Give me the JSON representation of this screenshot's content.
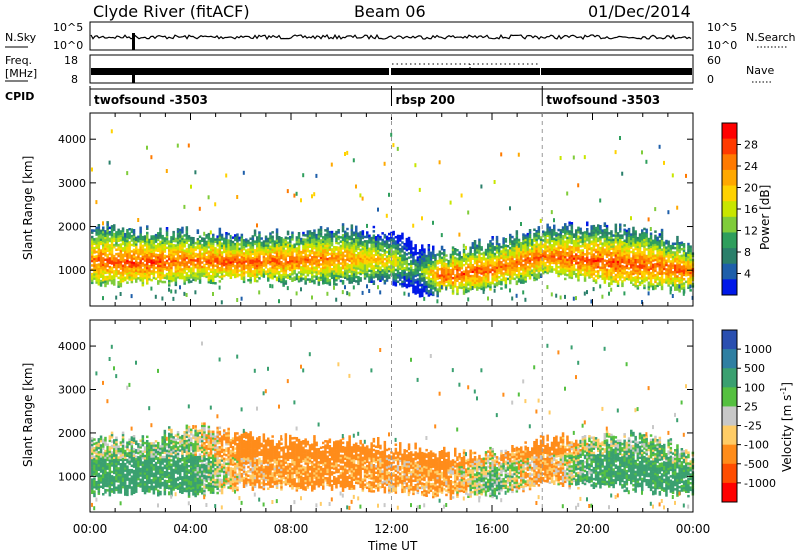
{
  "header": {
    "station": "Clyde River (fitACF)",
    "beam": "Beam 06",
    "date": "01/Dec/2014"
  },
  "noise_panel": {
    "left_label": "N.Sky",
    "right_label": "N.Search",
    "left_ticks": [
      "10^5",
      "10^0"
    ],
    "right_ticks": [
      "10^5",
      "10^0"
    ]
  },
  "freq_panel": {
    "left_label_line1": "Freq.",
    "left_label_line2": "[MHz]",
    "left_ticks": [
      "18",
      "8"
    ],
    "right_label": "Nave",
    "right_ticks": [
      "60",
      "0"
    ]
  },
  "cpid": {
    "label": "CPID",
    "segments": [
      {
        "name": "twofsound -3503",
        "start_hr": 0,
        "end_hr": 12
      },
      {
        "name": "rbsp 200",
        "start_hr": 12,
        "end_hr": 18
      },
      {
        "name": "twofsound -3503",
        "start_hr": 18,
        "end_hr": 24
      }
    ]
  },
  "power_colorbar": {
    "label": "Power [dB]",
    "ticks": [
      "28",
      "24",
      "20",
      "16",
      "12",
      "8",
      "4"
    ],
    "colors": [
      "#ff0000",
      "#ff3a00",
      "#ff7a00",
      "#ffa800",
      "#ffd200",
      "#c8e600",
      "#7fcc3a",
      "#2e9e5c",
      "#2a7f6a",
      "#1e5faa",
      "#0018e8"
    ]
  },
  "velocity_colorbar": {
    "label": "Velocity [m s",
    "label_sup": "-1",
    "label_close": "]",
    "ticks": [
      "1000",
      "500",
      "100",
      "25",
      "-25",
      "-100",
      "-500",
      "-1000"
    ],
    "colors": [
      "#2a4fb0",
      "#2f7fa2",
      "#3aa070",
      "#55c040",
      "#c8c8c8",
      "#ffcc66",
      "#ff8c1a",
      "#ff4d00",
      "#ff0000"
    ]
  },
  "axes": {
    "ylabel": "Slant Range [km]",
    "yticks": [
      "4000",
      "3000",
      "2000",
      "1000"
    ],
    "xlabel": "Time UT",
    "xticks": [
      "00:00",
      "04:00",
      "08:00",
      "12:00",
      "16:00",
      "20:00",
      "00:00"
    ]
  },
  "chart_data": [
    {
      "type": "heatmap",
      "title": "",
      "quantity": "Power",
      "xlabel": "Time UT",
      "ylabel": "Slant Range [km]",
      "xlim_hours": [
        0,
        24
      ],
      "ylim_km": [
        180,
        4600
      ],
      "colorbar_unit": "dB",
      "colorbar_range": [
        0,
        30
      ],
      "profile": [
        {
          "hour": 0,
          "center_km": 1200,
          "top_km": 2000,
          "bottom_km": 650,
          "power_db": 24
        },
        {
          "hour": 2,
          "center_km": 1150,
          "top_km": 1850,
          "bottom_km": 700,
          "power_db": 26
        },
        {
          "hour": 4,
          "center_km": 1200,
          "top_km": 1850,
          "bottom_km": 750,
          "power_db": 24
        },
        {
          "hour": 6,
          "center_km": 1150,
          "top_km": 1800,
          "bottom_km": 800,
          "power_db": 25
        },
        {
          "hour": 8,
          "center_km": 1200,
          "top_km": 1800,
          "bottom_km": 700,
          "power_db": 24
        },
        {
          "hour": 10,
          "center_km": 1250,
          "top_km": 1900,
          "bottom_km": 750,
          "power_db": 22
        },
        {
          "hour": 12,
          "center_km": 1200,
          "top_km": 1900,
          "bottom_km": 750,
          "power_db": 18
        },
        {
          "hour": 13,
          "center_km": 1000,
          "top_km": 1500,
          "bottom_km": 400,
          "power_db": 10
        },
        {
          "hour": 14,
          "center_km": 850,
          "top_km": 1400,
          "bottom_km": 500,
          "power_db": 26
        },
        {
          "hour": 16,
          "center_km": 1000,
          "top_km": 1600,
          "bottom_km": 600,
          "power_db": 24
        },
        {
          "hour": 18,
          "center_km": 1300,
          "top_km": 1900,
          "bottom_km": 900,
          "power_db": 24
        },
        {
          "hour": 20,
          "center_km": 1200,
          "top_km": 2000,
          "bottom_km": 750,
          "power_db": 26
        },
        {
          "hour": 22,
          "center_km": 1100,
          "top_km": 1900,
          "bottom_km": 650,
          "power_db": 25
        },
        {
          "hour": 24,
          "center_km": 950,
          "top_km": 1500,
          "bottom_km": 550,
          "power_db": 24
        }
      ]
    },
    {
      "type": "heatmap",
      "title": "",
      "quantity": "Velocity",
      "xlabel": "Time UT",
      "ylabel": "Slant Range [km]",
      "xlim_hours": [
        0,
        24
      ],
      "ylim_km": [
        180,
        4600
      ],
      "colorbar_unit": "m s-1",
      "colorbar_levels": [
        1000,
        500,
        100,
        25,
        -25,
        -100,
        -500,
        -1000
      ],
      "profile": [
        {
          "hour": 0,
          "center_km": 1200,
          "top_km": 1900,
          "bottom_km": 600,
          "velocity_ms": 150
        },
        {
          "hour": 2,
          "center_km": 1150,
          "top_km": 1800,
          "bottom_km": 650,
          "velocity_ms": 200
        },
        {
          "hour": 4,
          "center_km": 1250,
          "top_km": 2100,
          "bottom_km": 600,
          "velocity_ms": 150
        },
        {
          "hour": 6,
          "center_km": 1200,
          "top_km": 1900,
          "bottom_km": 750,
          "velocity_ms": -100
        },
        {
          "hour": 8,
          "center_km": 1250,
          "top_km": 1800,
          "bottom_km": 750,
          "velocity_ms": -150
        },
        {
          "hour": 10,
          "center_km": 1250,
          "top_km": 1800,
          "bottom_km": 750,
          "velocity_ms": -200
        },
        {
          "hour": 12,
          "center_km": 1200,
          "top_km": 1700,
          "bottom_km": 700,
          "velocity_ms": -100
        },
        {
          "hour": 14,
          "center_km": 1000,
          "top_km": 1500,
          "bottom_km": 550,
          "velocity_ms": -150
        },
        {
          "hour": 16,
          "center_km": 1000,
          "top_km": 1500,
          "bottom_km": 600,
          "velocity_ms": 100
        },
        {
          "hour": 18,
          "center_km": 1300,
          "top_km": 1800,
          "bottom_km": 800,
          "velocity_ms": -150
        },
        {
          "hour": 20,
          "center_km": 1300,
          "top_km": 1900,
          "bottom_km": 800,
          "velocity_ms": 150
        },
        {
          "hour": 22,
          "center_km": 1200,
          "top_km": 1900,
          "bottom_km": 700,
          "velocity_ms": 200
        },
        {
          "hour": 24,
          "center_km": 1000,
          "top_km": 1500,
          "bottom_km": 550,
          "velocity_ms": 150
        }
      ]
    }
  ]
}
